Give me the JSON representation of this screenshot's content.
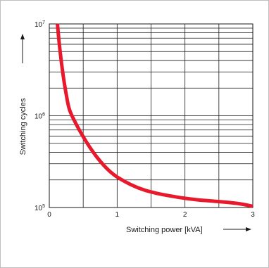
{
  "chart_data": {
    "type": "line",
    "xlabel": "Switching power [kVA]",
    "ylabel": "Switching cycles",
    "x_scale": "linear",
    "y_scale": "log",
    "xlim": [
      0,
      3
    ],
    "ylim": [
      100000,
      10000000
    ],
    "grid": true,
    "x_ticks": [
      {
        "value": 0,
        "label": "0"
      },
      {
        "value": 1,
        "label": "1"
      },
      {
        "value": 2,
        "label": "2"
      },
      {
        "value": 3,
        "label": "3"
      }
    ],
    "y_ticks": [
      {
        "value": 100000,
        "base": "10",
        "exp": "5"
      },
      {
        "value": 1000000,
        "base": "10",
        "exp": "6"
      },
      {
        "value": 10000000,
        "base": "10",
        "exp": "7"
      }
    ],
    "series": [
      {
        "color": "#e8192c",
        "x": [
          0.12,
          0.15,
          0.2,
          0.25,
          0.3,
          0.4,
          0.5,
          0.6,
          0.7,
          0.8,
          0.9,
          1.0,
          1.2,
          1.4,
          1.6,
          1.8,
          2.0,
          2.2,
          2.5,
          2.8,
          3.0
        ],
        "y": [
          10000000,
          5800000,
          2900000,
          1700000,
          1150000,
          800000,
          590000,
          450000,
          355000,
          290000,
          245000,
          215000,
          178000,
          155000,
          142000,
          133000,
          126000,
          121000,
          116000,
          110000,
          103000
        ]
      }
    ]
  }
}
